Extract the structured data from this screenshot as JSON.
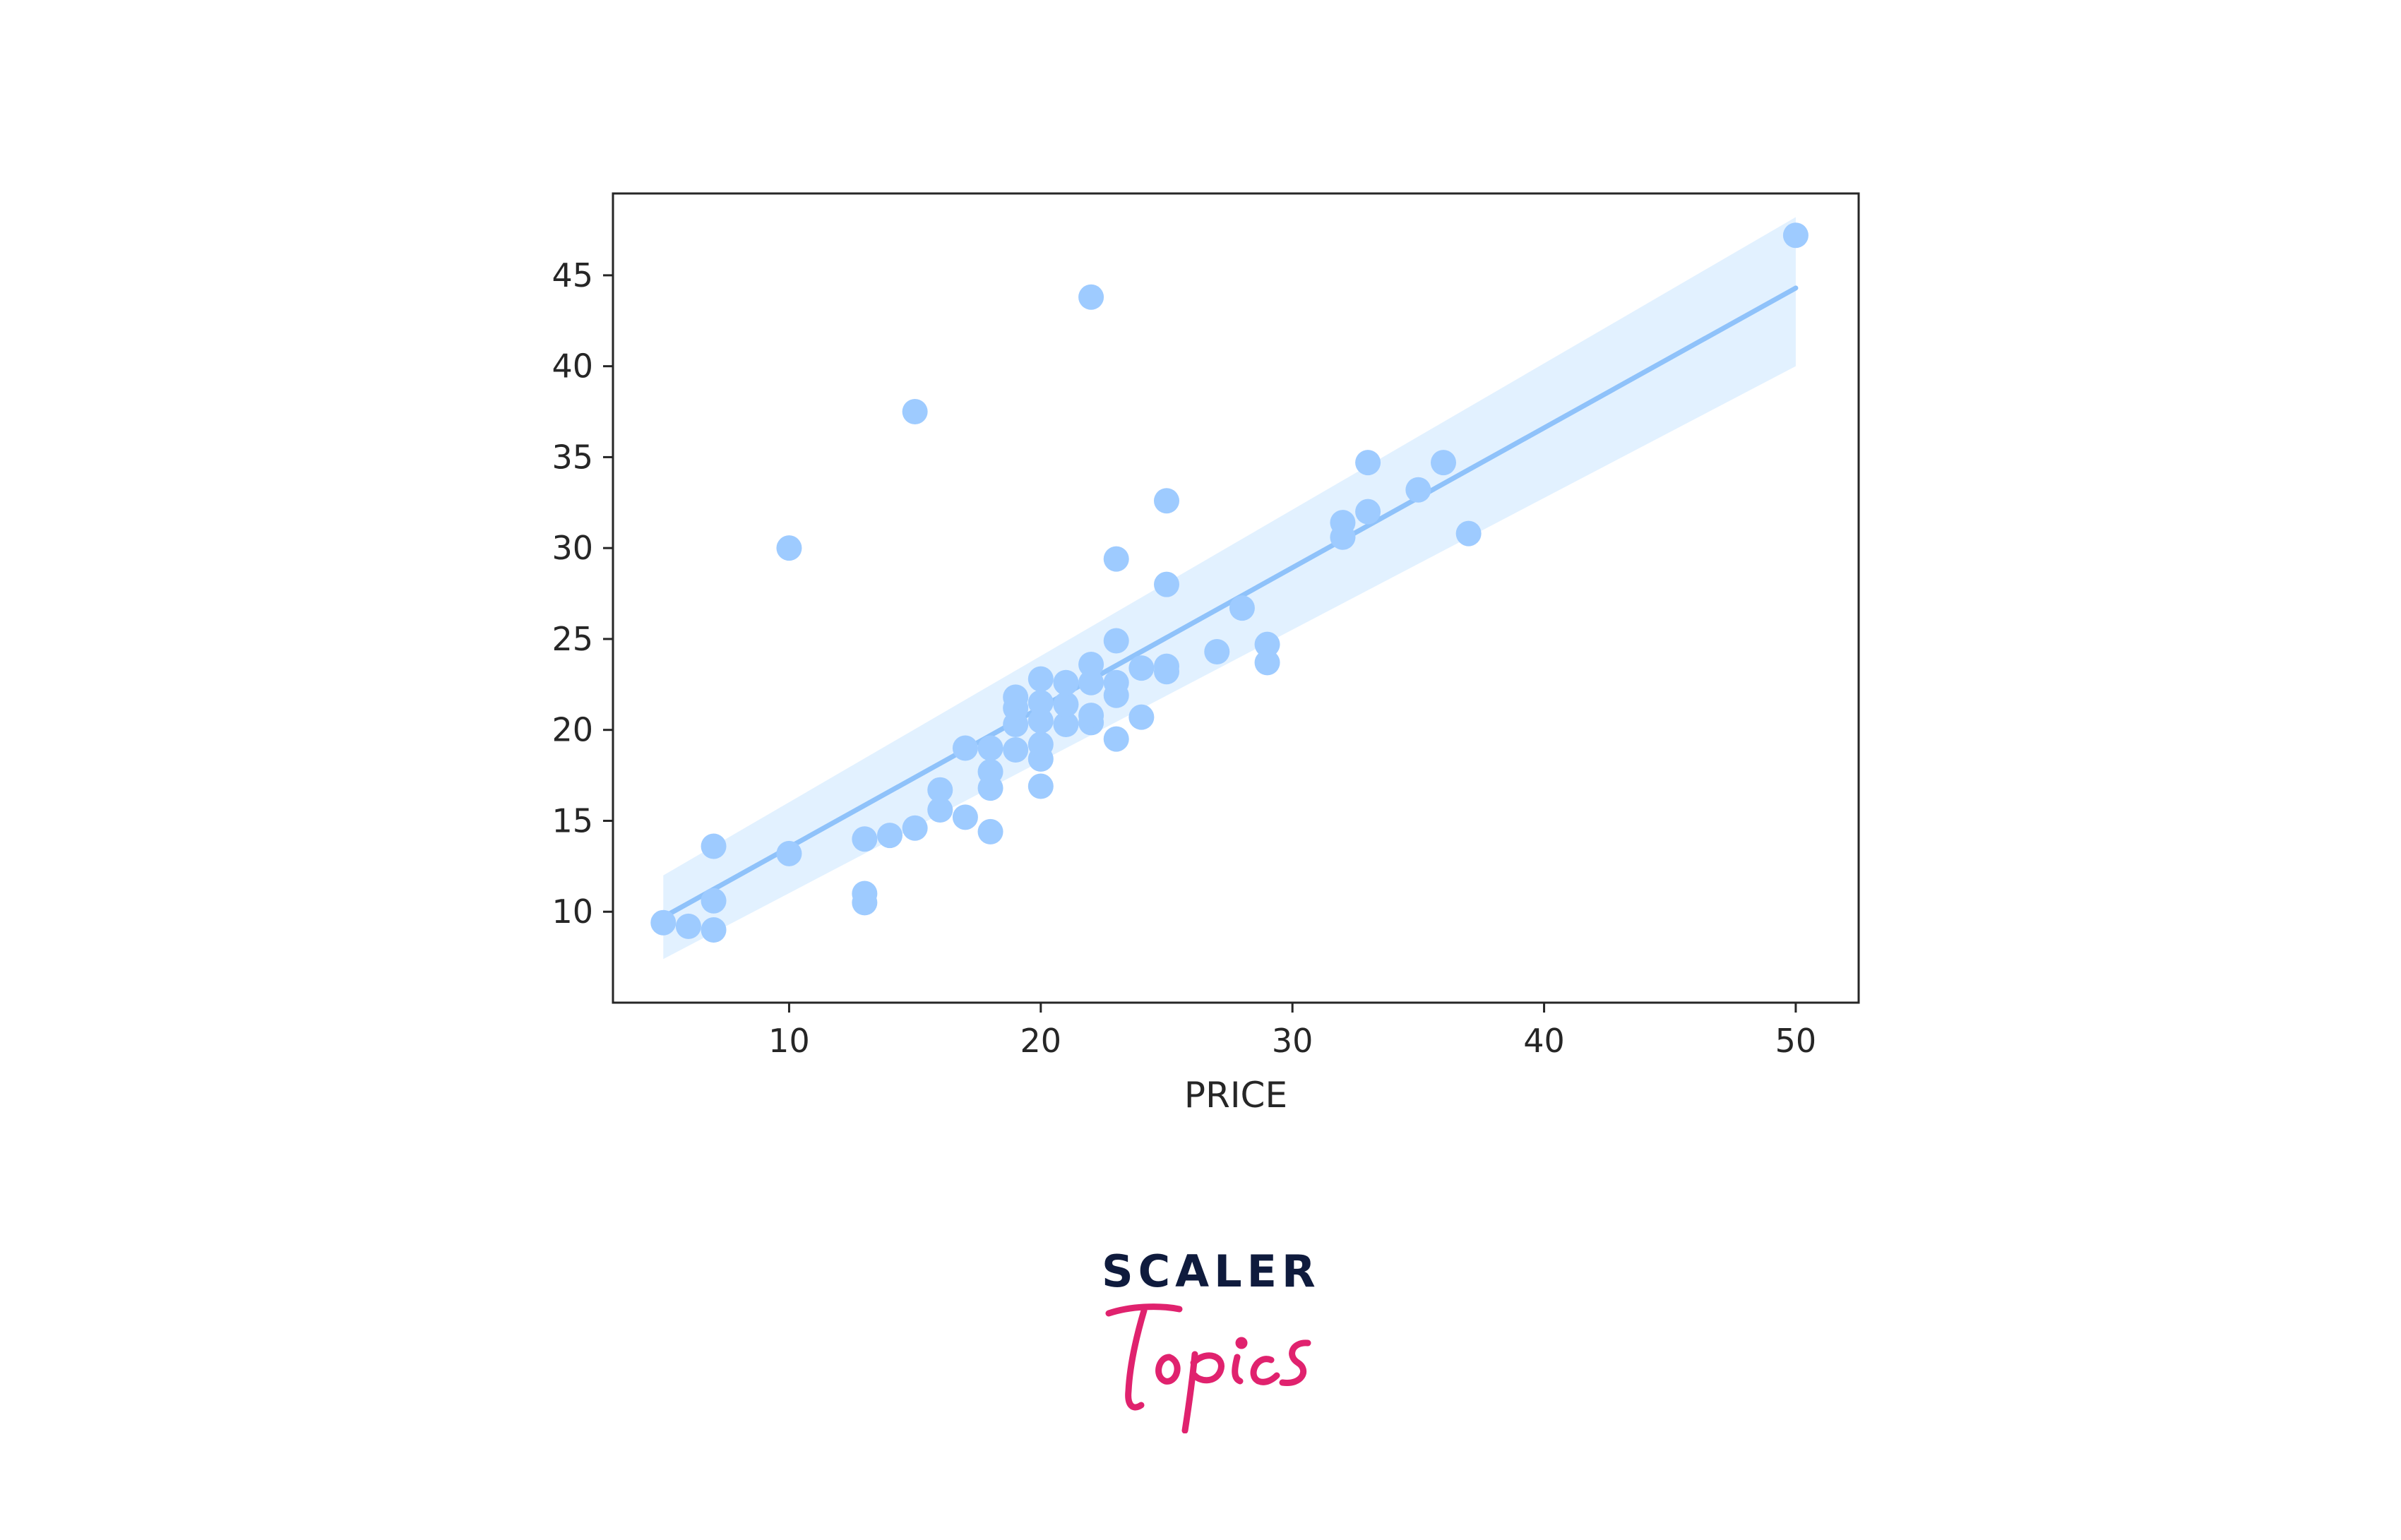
{
  "chart_data": {
    "type": "scatter",
    "xlabel": "PRICE",
    "ylabel": "",
    "xlim": [
      3,
      52.5
    ],
    "ylim": [
      5,
      49.5
    ],
    "xticks": [
      10,
      20,
      30,
      40,
      50
    ],
    "yticks": [
      10,
      15,
      20,
      25,
      30,
      35,
      40,
      45
    ],
    "grid": false,
    "point_color": "#9ecbff",
    "line_color": "#8fc2fa",
    "band_color": "#ddeeff",
    "regression": {
      "x": [
        5,
        50
      ],
      "y": [
        9.7,
        44.3
      ],
      "band_low": [
        7.4,
        40.0
      ],
      "band_high": [
        12.0,
        48.2
      ]
    },
    "points": [
      {
        "x": 5,
        "y": 9.4
      },
      {
        "x": 6,
        "y": 9.2
      },
      {
        "x": 7,
        "y": 9.0
      },
      {
        "x": 7,
        "y": 10.6
      },
      {
        "x": 7,
        "y": 13.6
      },
      {
        "x": 10,
        "y": 13.2
      },
      {
        "x": 10,
        "y": 30.0
      },
      {
        "x": 13,
        "y": 14.0
      },
      {
        "x": 13,
        "y": 11.0
      },
      {
        "x": 13,
        "y": 10.5
      },
      {
        "x": 14,
        "y": 14.2
      },
      {
        "x": 15,
        "y": 14.6
      },
      {
        "x": 15,
        "y": 37.5
      },
      {
        "x": 16,
        "y": 15.6
      },
      {
        "x": 16,
        "y": 16.7
      },
      {
        "x": 17,
        "y": 15.2
      },
      {
        "x": 17,
        "y": 19.0
      },
      {
        "x": 18,
        "y": 14.4
      },
      {
        "x": 18,
        "y": 16.8
      },
      {
        "x": 18,
        "y": 17.7
      },
      {
        "x": 18,
        "y": 19.0
      },
      {
        "x": 19,
        "y": 18.9
      },
      {
        "x": 19,
        "y": 20.3
      },
      {
        "x": 19,
        "y": 21.2
      },
      {
        "x": 19,
        "y": 21.8
      },
      {
        "x": 20,
        "y": 16.9
      },
      {
        "x": 20,
        "y": 18.4
      },
      {
        "x": 20,
        "y": 19.2
      },
      {
        "x": 20,
        "y": 20.5
      },
      {
        "x": 20,
        "y": 21.5
      },
      {
        "x": 20,
        "y": 22.8
      },
      {
        "x": 21,
        "y": 20.3
      },
      {
        "x": 21,
        "y": 21.4
      },
      {
        "x": 21,
        "y": 22.6
      },
      {
        "x": 22,
        "y": 20.4
      },
      {
        "x": 22,
        "y": 20.8
      },
      {
        "x": 22,
        "y": 22.6
      },
      {
        "x": 22,
        "y": 23.6
      },
      {
        "x": 22,
        "y": 43.8
      },
      {
        "x": 23,
        "y": 19.5
      },
      {
        "x": 23,
        "y": 21.9
      },
      {
        "x": 23,
        "y": 22.6
      },
      {
        "x": 23,
        "y": 24.9
      },
      {
        "x": 23,
        "y": 29.4
      },
      {
        "x": 24,
        "y": 20.7
      },
      {
        "x": 24,
        "y": 23.4
      },
      {
        "x": 25,
        "y": 23.2
      },
      {
        "x": 25,
        "y": 23.5
      },
      {
        "x": 25,
        "y": 28.0
      },
      {
        "x": 25,
        "y": 32.6
      },
      {
        "x": 27,
        "y": 24.3
      },
      {
        "x": 28,
        "y": 26.7
      },
      {
        "x": 29,
        "y": 23.7
      },
      {
        "x": 29,
        "y": 24.7
      },
      {
        "x": 32,
        "y": 30.6
      },
      {
        "x": 32,
        "y": 31.4
      },
      {
        "x": 33,
        "y": 32.0
      },
      {
        "x": 33,
        "y": 34.7
      },
      {
        "x": 35,
        "y": 33.2
      },
      {
        "x": 36,
        "y": 34.7
      },
      {
        "x": 37,
        "y": 30.8
      },
      {
        "x": 50,
        "y": 47.2
      }
    ]
  },
  "logo": {
    "word_top": "SCALER",
    "word_bottom": "Topics",
    "top_color": "#0f1b3d",
    "bottom_color": "#e0226e"
  }
}
